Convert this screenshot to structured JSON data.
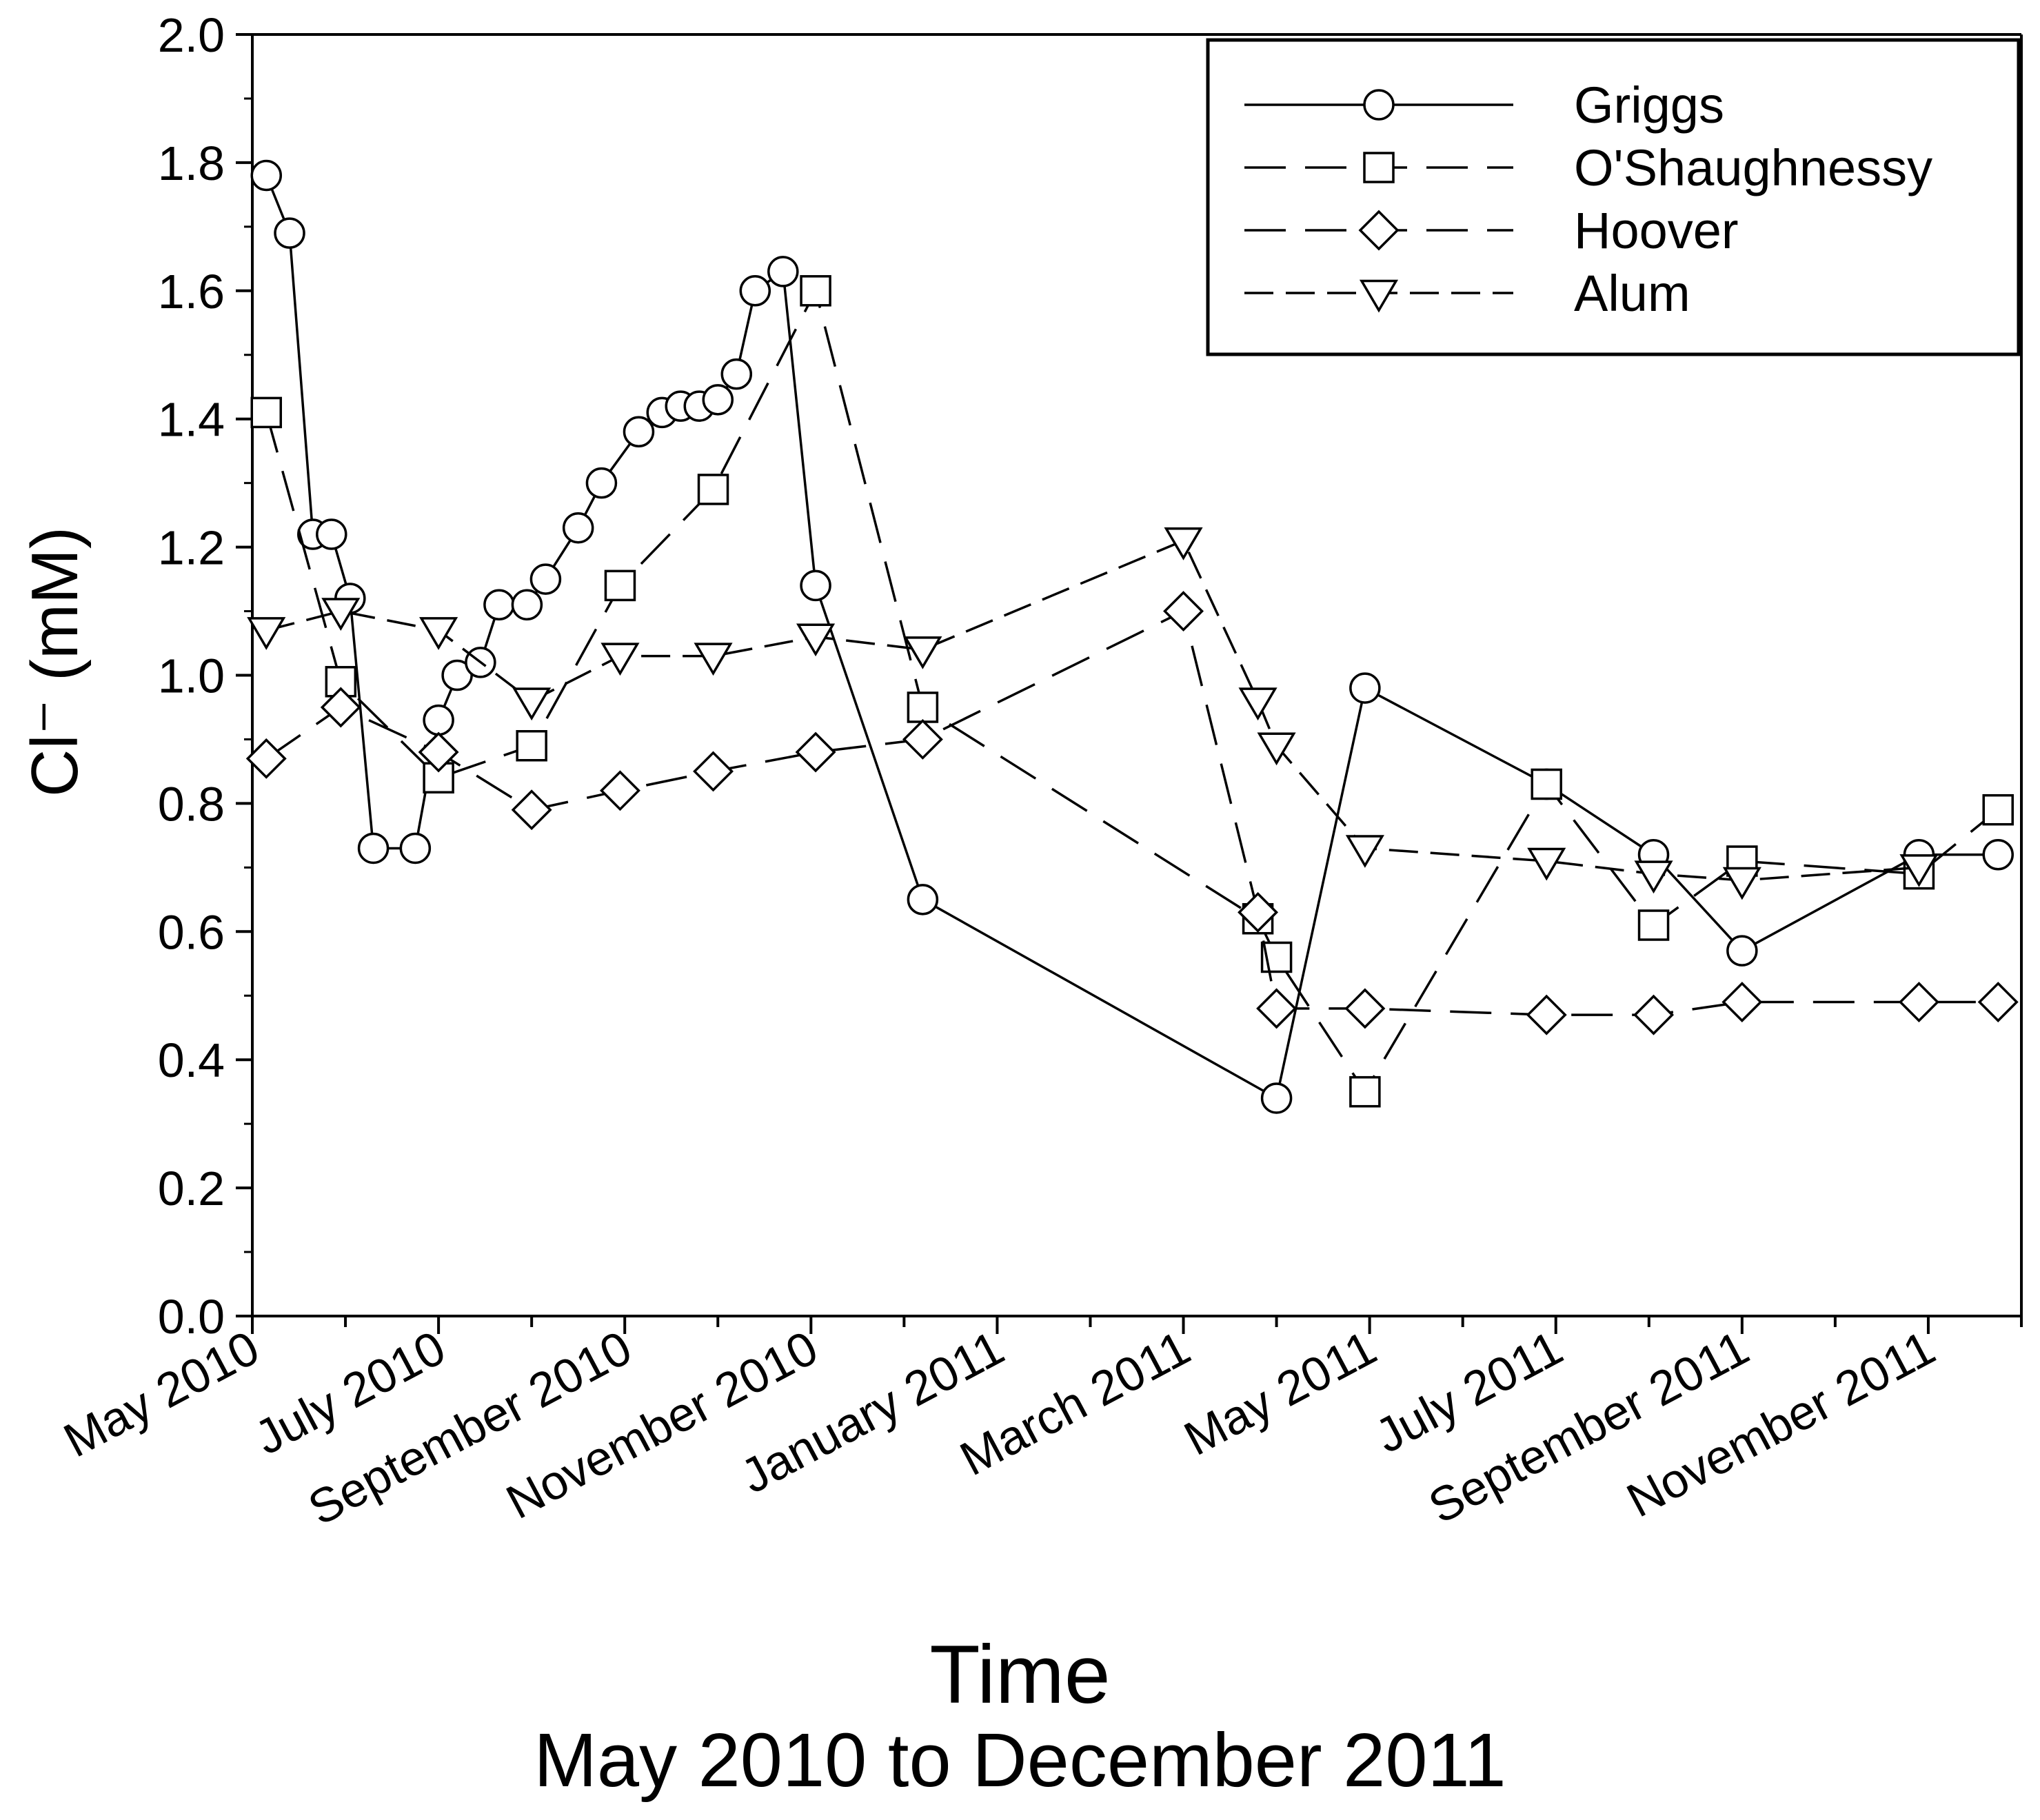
{
  "chart_data": {
    "type": "line",
    "ylabel": "Cl⁻ (mM)",
    "xlabel_line1": "Time",
    "xlabel_line2": "May 2010 to December 2011",
    "ylim": [
      0.0,
      2.0
    ],
    "y_ticks": [
      "0.0",
      "0.2",
      "0.4",
      "0.6",
      "0.8",
      "1.0",
      "1.2",
      "1.4",
      "1.6",
      "1.8",
      "2.0"
    ],
    "x_domain_months": [
      0,
      19
    ],
    "x_tick_labels": [
      {
        "label": "May 2010",
        "month": 0
      },
      {
        "label": "July 2010",
        "month": 2
      },
      {
        "label": "September 2010",
        "month": 4
      },
      {
        "label": "November 2010",
        "month": 6
      },
      {
        "label": "January 2011",
        "month": 8
      },
      {
        "label": "March 2011",
        "month": 10
      },
      {
        "label": "May 2011",
        "month": 12
      },
      {
        "label": "July 2011",
        "month": 14
      },
      {
        "label": "September 2011",
        "month": 16
      },
      {
        "label": "November 2011",
        "month": 18
      }
    ],
    "legend_position": "top-right",
    "series": [
      {
        "name": "Griggs",
        "marker": "circle",
        "dash": "",
        "x": [
          0.15,
          0.4,
          0.65,
          0.85,
          1.05,
          1.3,
          1.75,
          2.0,
          2.2,
          2.45,
          2.65,
          2.95,
          3.15,
          3.5,
          3.75,
          4.15,
          4.4,
          4.6,
          4.8,
          5.0,
          5.2,
          5.4,
          5.7,
          6.05,
          7.2,
          11.0,
          11.95,
          13.9,
          15.05,
          16.0,
          17.9,
          18.75
        ],
        "values": [
          1.78,
          1.69,
          1.22,
          1.22,
          1.12,
          0.73,
          0.73,
          0.93,
          1.0,
          1.02,
          1.11,
          1.11,
          1.15,
          1.23,
          1.3,
          1.38,
          1.41,
          1.42,
          1.42,
          1.43,
          1.47,
          1.6,
          1.63,
          1.14,
          0.65,
          0.34,
          0.98,
          0.83,
          0.72,
          0.57,
          0.72,
          0.72
        ]
      },
      {
        "name": "O'Shaughnessy",
        "marker": "square",
        "dash": "60,28",
        "x": [
          0.15,
          0.95,
          2.0,
          3.0,
          3.95,
          4.95,
          6.05,
          7.2,
          10.8,
          11.0,
          11.95,
          13.9,
          15.05,
          16.0,
          17.9,
          18.75
        ],
        "values": [
          1.41,
          0.99,
          0.84,
          0.89,
          1.14,
          1.29,
          1.6,
          0.95,
          0.62,
          0.56,
          0.35,
          0.83,
          0.61,
          0.71,
          0.69,
          0.79
        ]
      },
      {
        "name": "Hoover",
        "marker": "diamond",
        "dash": "60,28",
        "x": [
          0.15,
          0.95,
          2.0,
          3.0,
          3.95,
          4.95,
          6.05,
          7.2,
          10.0,
          10.8,
          11.0,
          11.95,
          13.9,
          15.05,
          16.0,
          17.9,
          18.75
        ],
        "values": [
          0.87,
          0.95,
          0.88,
          0.79,
          0.82,
          0.85,
          0.88,
          0.9,
          1.1,
          0.63,
          0.48,
          0.48,
          0.47,
          0.47,
          0.49,
          0.49,
          0.49
        ]
      },
      {
        "name": "Alum",
        "marker": "triangle-down",
        "dash": "42,18",
        "x": [
          0.15,
          0.95,
          2.0,
          3.0,
          3.95,
          4.95,
          6.05,
          7.2,
          10.0,
          10.8,
          11.0,
          11.95,
          13.9,
          15.05,
          16.0,
          17.9
        ],
        "values": [
          1.07,
          1.1,
          1.07,
          0.96,
          1.03,
          1.03,
          1.06,
          1.04,
          1.21,
          0.96,
          0.89,
          0.73,
          0.71,
          0.69,
          0.68,
          0.7
        ]
      }
    ]
  }
}
